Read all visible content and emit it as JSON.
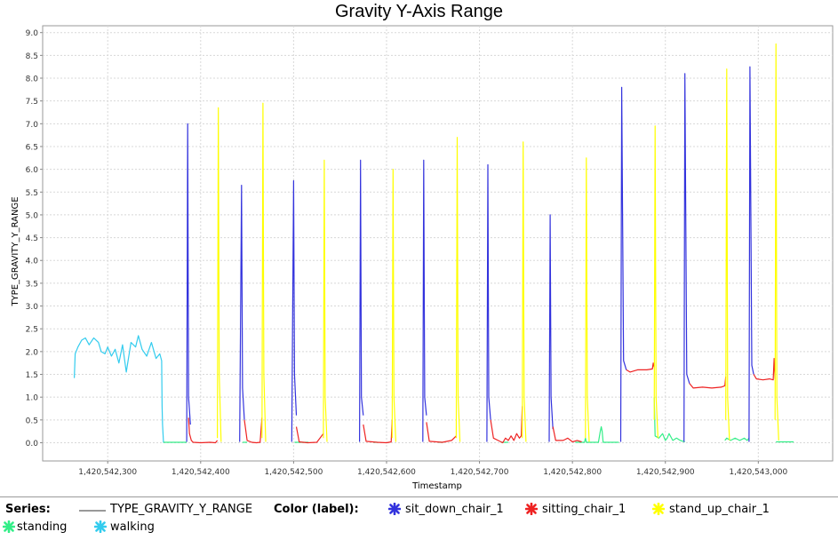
{
  "chart_data": {
    "type": "line",
    "title": "Gravity Y-Axis Range",
    "xlabel": "Timestamp",
    "ylabel": "TYPE_GRAVITY_Y_RANGE",
    "xlim": [
      1420542230,
      1420543080
    ],
    "ylim": [
      -0.4,
      9.15
    ],
    "x_ticks": [
      1420542300,
      1420542400,
      1420542500,
      1420542600,
      1420542700,
      1420542800,
      1420542900,
      1420543000
    ],
    "x_tick_labels": [
      "1,420,542,300",
      "1,420,542,400",
      "1,420,542,500",
      "1,420,542,600",
      "1,420,542,700",
      "1,420,542,800",
      "1,420,542,900",
      "1,420,543,000"
    ],
    "y_ticks": [
      0.0,
      0.5,
      1.0,
      1.5,
      2.0,
      2.5,
      3.0,
      3.5,
      4.0,
      4.5,
      5.0,
      5.5,
      6.0,
      6.5,
      7.0,
      7.5,
      8.0,
      8.5,
      9.0
    ],
    "y_tick_labels": [
      "0.0",
      "0.5",
      "1.0",
      "1.5",
      "2.0",
      "2.5",
      "3.0",
      "3.5",
      "4.0",
      "4.5",
      "5.0",
      "5.5",
      "6.0",
      "6.5",
      "7.0",
      "7.5",
      "8.0",
      "8.5",
      "9.0"
    ],
    "grid": true,
    "series": [
      {
        "name": "walking",
        "color": "#33ccee",
        "x": [
          1420542264,
          1420542265,
          1420542268,
          1420542272,
          1420542276,
          1420542280,
          1420542285,
          1420542290,
          1420542293,
          1420542297,
          1420542300,
          1420542304,
          1420542308,
          1420542312,
          1420542316,
          1420542320,
          1420542325,
          1420542330,
          1420542333,
          1420542337,
          1420542342,
          1420542347,
          1420542352,
          1420542356,
          1420542358,
          1420542358.5,
          1420542359,
          1420542360
        ],
        "y": [
          1.42,
          1.95,
          2.1,
          2.25,
          2.3,
          2.15,
          2.3,
          2.2,
          2.0,
          1.95,
          2.1,
          1.9,
          2.05,
          1.75,
          2.15,
          1.55,
          2.2,
          2.1,
          2.35,
          2.05,
          1.9,
          2.2,
          1.85,
          1.95,
          1.8,
          0.8,
          0.4,
          0.0
        ]
      },
      {
        "name": "standing",
        "color": "#33ee88",
        "segments": [
          {
            "x": [
              1420542360,
              1420542385
            ],
            "y": [
              0.01,
              0.01
            ]
          },
          {
            "x": [
              1420542445,
              1420542450
            ],
            "y": [
              0.01,
              0.01
            ]
          },
          {
            "x": [
              1420542501,
              1420542516
            ],
            "y": [
              0.01,
              0.01
            ]
          },
          {
            "x": [
              1420542586,
              1420542591
            ],
            "y": [
              0.01,
              0.01
            ]
          },
          {
            "x": [
              1420542656,
              1420542661
            ],
            "y": [
              0.01,
              0.01
            ]
          },
          {
            "x": [
              1420542723,
              1420542731
            ],
            "y": [
              0.01,
              0.01
            ]
          },
          {
            "x": [
              1420542803,
              1420542813,
              1420542814,
              1420542815,
              1420542828,
              1420542830,
              1420542831,
              1420542832,
              1420542833,
              1420542842,
              1420542850
            ],
            "y": [
              0.01,
              0.01,
              0.1,
              0.01,
              0.01,
              0.25,
              0.35,
              0.25,
              0.01,
              0.01,
              0.01
            ]
          },
          {
            "x": [
              1420542888,
              1420542889,
              1420542893,
              1420542897,
              1420542900,
              1420542902,
              1420542904,
              1420542908,
              1420542912,
              1420542916,
              1420542921
            ],
            "y": [
              1.0,
              0.15,
              0.1,
              0.2,
              0.05,
              0.1,
              0.2,
              0.05,
              0.1,
              0.05,
              0.02
            ]
          },
          {
            "x": [
              1420542964,
              1420542966,
              1420542970,
              1420542975,
              1420542980,
              1420542985,
              1420542988,
              1420542990
            ],
            "y": [
              0.05,
              0.1,
              0.05,
              0.1,
              0.05,
              0.1,
              0.05,
              0.1
            ]
          },
          {
            "x": [
              1420543019,
              1420543025,
              1420543030,
              1420543038
            ],
            "y": [
              0.02,
              0.02,
              0.02,
              0.02
            ]
          }
        ]
      },
      {
        "name": "sit_down_chair_1",
        "color": "#3333dd",
        "segments": [
          {
            "x": [
              1420542385,
              1420542386,
              1420542387,
              1420542389
            ],
            "y": [
              0.02,
              7.0,
              1.0,
              0.4
            ]
          },
          {
            "x": [
              1420542442,
              1420542444,
              1420542445,
              1420542447
            ],
            "y": [
              0.02,
              5.65,
              1.2,
              0.5
            ]
          },
          {
            "x": [
              1420542498,
              1420542500,
              1420542501,
              1420542503
            ],
            "y": [
              0.02,
              5.75,
              1.5,
              0.6
            ]
          },
          {
            "x": [
              1420542571,
              1420542572,
              1420542573,
              1420542575
            ],
            "y": [
              0.02,
              6.2,
              1.0,
              0.6
            ]
          },
          {
            "x": [
              1420542639,
              1420542640,
              1420542641,
              1420542643
            ],
            "y": [
              0.02,
              6.2,
              1.0,
              0.6
            ]
          },
          {
            "x": [
              1420542708,
              1420542709,
              1420542710,
              1420542712
            ],
            "y": [
              0.02,
              6.1,
              1.0,
              0.5
            ]
          },
          {
            "x": [
              1420542775,
              1420542776,
              1420542777,
              1420542779
            ],
            "y": [
              0.02,
              5.0,
              1.0,
              0.3
            ]
          },
          {
            "x": [
              1420542852,
              1420542853,
              1420542855,
              1420542858
            ],
            "y": [
              0.02,
              7.8,
              1.8,
              1.6
            ]
          },
          {
            "x": [
              1420542920,
              1420542921,
              1420542923,
              1420542926
            ],
            "y": [
              0.02,
              8.1,
              1.5,
              1.3
            ]
          },
          {
            "x": [
              1420542990,
              1420542991,
              1420542993,
              1420542995
            ],
            "y": [
              0.02,
              8.25,
              1.7,
              1.5
            ]
          }
        ]
      },
      {
        "name": "sitting_chair_1",
        "color": "#ee2222",
        "segments": [
          {
            "x": [
              1420542387,
              1420542388,
              1420542390,
              1420542392,
              1420542400,
              1420542410,
              1420542416,
              1420542418
            ],
            "y": [
              0.55,
              0.2,
              0.05,
              0.01,
              0.0,
              0.01,
              0.0,
              0.05
            ]
          },
          {
            "x": [
              1420542447,
              1420542450,
              1420542455,
              1420542460,
              1420542464,
              1420542466
            ],
            "y": [
              0.5,
              0.05,
              0.01,
              0.0,
              0.01,
              0.55
            ]
          },
          {
            "x": [
              1420542503,
              1420542506,
              1420542515,
              1420542525,
              1420542532
            ],
            "y": [
              0.35,
              0.02,
              0.0,
              0.01,
              0.2
            ]
          },
          {
            "x": [
              1420542575,
              1420542578,
              1420542590,
              1420542600,
              1420542605,
              1420542606
            ],
            "y": [
              0.4,
              0.03,
              0.01,
              0.0,
              0.02,
              0.5
            ]
          },
          {
            "x": [
              1420542643,
              1420542646,
              1420542660,
              1420542670,
              1420542675
            ],
            "y": [
              0.45,
              0.03,
              0.01,
              0.05,
              0.15
            ]
          },
          {
            "x": [
              1420542712,
              1420542715,
              1420542720,
              1420542725,
              1420542728,
              1420542731,
              1420542734,
              1420542737,
              1420542740,
              1420542743,
              1420542745,
              1420542746
            ],
            "y": [
              0.5,
              0.1,
              0.05,
              0.0,
              0.1,
              0.05,
              0.15,
              0.05,
              0.2,
              0.1,
              0.15,
              0.8
            ]
          },
          {
            "x": [
              1420542779,
              1420542782,
              1420542790,
              1420542795,
              1420542800,
              1420542805,
              1420542810
            ],
            "y": [
              0.35,
              0.05,
              0.05,
              0.1,
              0.02,
              0.05,
              0.02
            ]
          },
          {
            "x": [
              1420542858,
              1420542862,
              1420542870,
              1420542880,
              1420542886,
              1420542887,
              1420542888
            ],
            "y": [
              1.6,
              1.55,
              1.6,
              1.6,
              1.62,
              1.75,
              1.65
            ]
          },
          {
            "x": [
              1420542926,
              1420542930,
              1420542940,
              1420542950,
              1420542960,
              1420542964,
              1420542965
            ],
            "y": [
              1.3,
              1.2,
              1.22,
              1.2,
              1.22,
              1.25,
              1.45
            ]
          },
          {
            "x": [
              1420542995,
              1420542998,
              1420543005,
              1420543012,
              1420543016,
              1420543017,
              1420543018
            ],
            "y": [
              1.5,
              1.4,
              1.38,
              1.4,
              1.38,
              1.85,
              1.4
            ]
          }
        ]
      },
      {
        "name": "stand_up_chair_1",
        "color": "#ffff00",
        "segments": [
          {
            "x": [
              1420542418,
              1420542419,
              1420542420,
              1420542422
            ],
            "y": [
              0.1,
              7.35,
              1.5,
              0.02
            ]
          },
          {
            "x": [
              1420542466,
              1420542467,
              1420542468,
              1420542470
            ],
            "y": [
              0.1,
              7.45,
              1.5,
              0.02
            ]
          },
          {
            "x": [
              1420542532,
              1420542533,
              1420542534,
              1420542536
            ],
            "y": [
              0.1,
              6.2,
              1.0,
              0.02
            ]
          },
          {
            "x": [
              1420542606,
              1420542607,
              1420542608,
              1420542610
            ],
            "y": [
              0.1,
              6.0,
              1.0,
              0.02
            ]
          },
          {
            "x": [
              1420542675,
              1420542676,
              1420542677,
              1420542679
            ],
            "y": [
              0.1,
              6.7,
              1.0,
              0.02
            ]
          },
          {
            "x": [
              1420542746,
              1420542747,
              1420542748,
              1420542750
            ],
            "y": [
              0.1,
              6.6,
              1.0,
              0.02
            ]
          },
          {
            "x": [
              1420542814,
              1420542815,
              1420542816,
              1420542818
            ],
            "y": [
              0.1,
              6.25,
              1.0,
              0.02
            ]
          },
          {
            "x": [
              1420542888,
              1420542889,
              1420542890,
              1420542892
            ],
            "y": [
              0.5,
              6.95,
              1.0,
              0.1
            ]
          },
          {
            "x": [
              1420542965,
              1420542966,
              1420542967,
              1420542969
            ],
            "y": [
              0.5,
              8.2,
              1.0,
              0.05
            ]
          },
          {
            "x": [
              1420543018,
              1420543019,
              1420543020,
              1420543022
            ],
            "y": [
              0.5,
              8.75,
              1.0,
              0.05
            ]
          }
        ]
      }
    ]
  },
  "legend": {
    "series_label": "Series:",
    "series_name": "TYPE_GRAVITY_Y_RANGE",
    "color_label": "Color (label):",
    "items": [
      {
        "name": "sit_down_chair_1",
        "color": "#3333dd"
      },
      {
        "name": "sitting_chair_1",
        "color": "#ee2222"
      },
      {
        "name": "stand_up_chair_1",
        "color": "#ffff00"
      },
      {
        "name": "standing",
        "color": "#33ee88"
      },
      {
        "name": "walking",
        "color": "#33ccee"
      }
    ]
  }
}
